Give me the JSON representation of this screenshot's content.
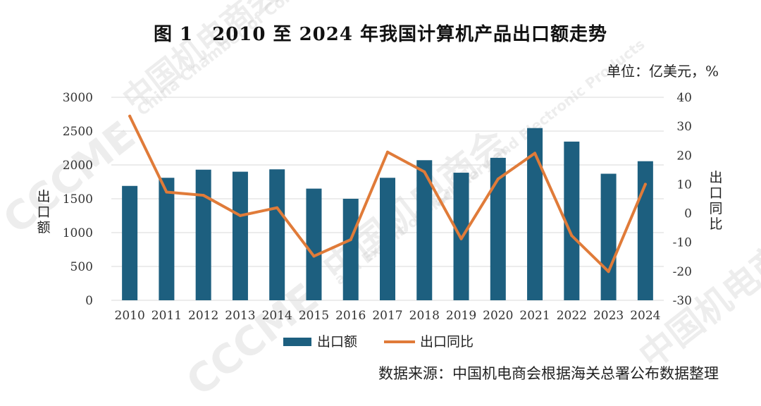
{
  "title": "图 1　2010 至 2024 年我国计算机产品出口额走势",
  "unit": "单位：亿美元，%",
  "source": "数据来源：中国机电商会根据海关总署公布数据整理",
  "watermark": [
    "中国机电商会",
    "China Chamber of Commerce for Import",
    "and Export of Machinery and Electronic Products",
    "CCCME"
  ],
  "colors": {
    "bar": "#1d5f7f",
    "line": "#e07b39",
    "grid": "#d9d9d9"
  },
  "chart_data": {
    "type": "bar",
    "categories": [
      "2010",
      "2011",
      "2012",
      "2013",
      "2014",
      "2015",
      "2016",
      "2017",
      "2018",
      "2019",
      "2020",
      "2021",
      "2022",
      "2023",
      "2024"
    ],
    "series": [
      {
        "name": "出口额",
        "type": "bar",
        "axis": "left",
        "values": [
          1690,
          1810,
          1930,
          1900,
          1935,
          1650,
          1500,
          1810,
          2070,
          1885,
          2105,
          2545,
          2345,
          1870,
          2055
        ]
      },
      {
        "name": "出口同比",
        "type": "line",
        "axis": "right",
        "values": [
          33.5,
          7.3,
          6.2,
          -0.8,
          1.9,
          -14.8,
          -9.1,
          21.1,
          14.3,
          -8.8,
          11.8,
          20.7,
          -7.7,
          -20.1,
          10
        ]
      }
    ],
    "ylabel_left": "出口额",
    "ylabel_right": "出口同比",
    "ylim_left": [
      0,
      3000
    ],
    "ylim_right": [
      -30,
      40
    ],
    "yticks_left": [
      0,
      500,
      1000,
      1500,
      2000,
      2500,
      3000
    ],
    "yticks_right": [
      -30,
      -20,
      -10,
      0,
      10,
      20,
      30,
      40
    ],
    "yticklabels_right": [
      "-30",
      "-20",
      "-10",
      "0",
      "10",
      "20",
      "30",
      "40"
    ],
    "grid": true,
    "legend": "bottom"
  }
}
